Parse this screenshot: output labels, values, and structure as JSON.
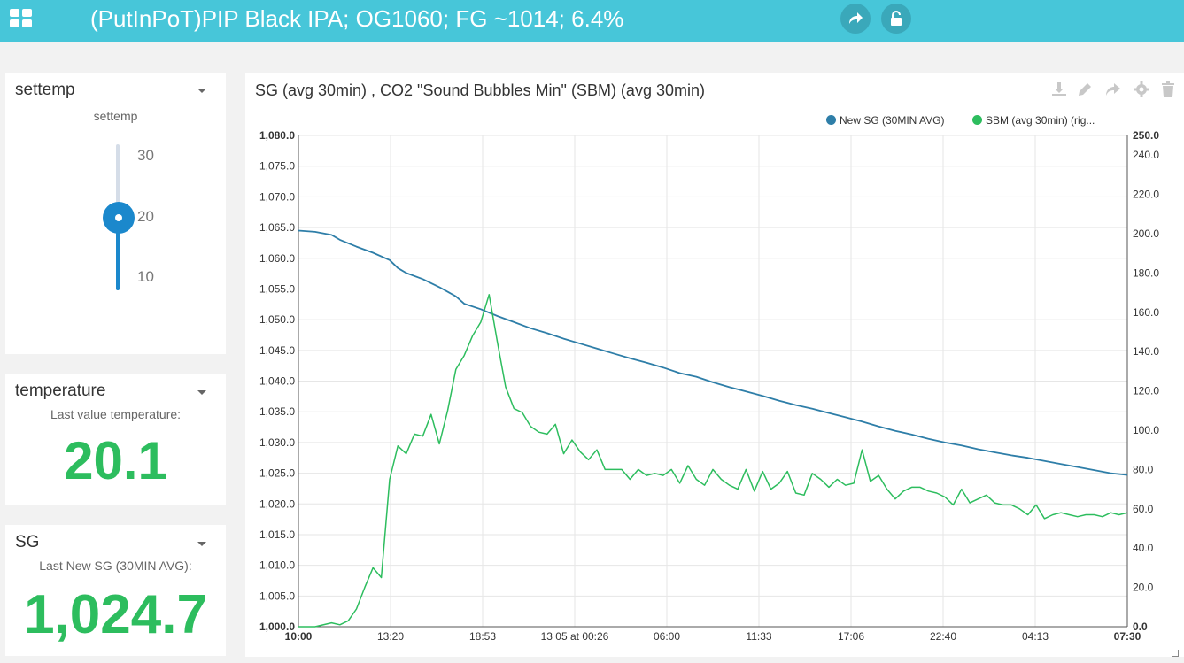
{
  "header": {
    "title": "(PutInPoT)PIP Black IPA; OG1060; FG ~1014; 6.4%",
    "icons": [
      "grid-menu-icon",
      "share-icon",
      "lock-icon"
    ],
    "colors": {
      "topbar": "#47c6d9",
      "buttons": "#3aa8ba"
    }
  },
  "settemp": {
    "title": "settemp",
    "label": "settemp",
    "value": 20,
    "min": 5,
    "max": 35,
    "ticks": [
      "30",
      "20",
      "10"
    ],
    "color": "#1b88cc"
  },
  "temperature": {
    "title": "temperature",
    "label": "Last value temperature:",
    "value": "20.1",
    "color": "#2dbd5e"
  },
  "sg": {
    "title": "SG",
    "label": "Last New SG (30MIN AVG):",
    "value": "1,024.7",
    "color": "#2dbd5e"
  },
  "chart_panel": {
    "title": "SG (avg 30min) , CO2 \"Sound Bubbles Min\" (SBM) (avg 30min)",
    "toolbar_icons": [
      "download-icon",
      "edit-icon",
      "share-icon",
      "settings-icon",
      "delete-icon"
    ]
  },
  "chart_data": {
    "type": "line",
    "title": "SG (avg 30min) , CO2 \"Sound Bubbles Min\" (SBM) (avg 30min)",
    "legend_position": "top-right",
    "grid": true,
    "x_ticks": [
      "10:00",
      "13:20",
      "18:53",
      "13 05 at 00:26",
      "06:00",
      "11:33",
      "17:06",
      "22:40",
      "04:13",
      "07:30"
    ],
    "x_range": [
      0,
      100
    ],
    "y_left": {
      "range": [
        1000,
        1080
      ],
      "ticks": [
        "1,000.0",
        "1,005.0",
        "1,010.0",
        "1,015.0",
        "1,020.0",
        "1,025.0",
        "1,030.0",
        "1,035.0",
        "1,040.0",
        "1,045.0",
        "1,050.0",
        "1,055.0",
        "1,060.0",
        "1,065.0",
        "1,070.0",
        "1,075.0",
        "1,080.0"
      ]
    },
    "y_right": {
      "range": [
        0,
        250
      ],
      "ticks": [
        "0.0",
        "20.0",
        "40.0",
        "60.0",
        "80.0",
        "100.0",
        "120.0",
        "140.0",
        "160.0",
        "180.0",
        "200.0",
        "220.0",
        "240.0",
        "250.0"
      ]
    },
    "series": [
      {
        "name": "New SG (30MIN AVG)",
        "axis": "left",
        "color": "#2e7ea8",
        "x": [
          0,
          2,
          4,
          5,
          7,
          9,
          11,
          12,
          13,
          15,
          17,
          19,
          20,
          22,
          24,
          26,
          28,
          30,
          32,
          34,
          36,
          38,
          40,
          42,
          44,
          46,
          48,
          50,
          52,
          54,
          56,
          58,
          60,
          62,
          64,
          66,
          68,
          70,
          72,
          74,
          76,
          78,
          80,
          82,
          84,
          86,
          88,
          90,
          92,
          94,
          96,
          98,
          100
        ],
        "y": [
          1064.5,
          1064.3,
          1063.8,
          1063.0,
          1061.9,
          1060.9,
          1059.7,
          1058.4,
          1057.6,
          1056.6,
          1055.3,
          1053.8,
          1052.6,
          1051.7,
          1050.6,
          1049.6,
          1048.6,
          1047.8,
          1046.9,
          1046.1,
          1045.3,
          1044.5,
          1043.7,
          1043.0,
          1042.2,
          1041.3,
          1040.7,
          1039.8,
          1039.0,
          1038.3,
          1037.6,
          1036.8,
          1036.1,
          1035.5,
          1034.8,
          1034.1,
          1033.4,
          1032.6,
          1031.9,
          1031.3,
          1030.6,
          1030.0,
          1029.5,
          1028.9,
          1028.4,
          1027.9,
          1027.5,
          1027.0,
          1026.5,
          1026.0,
          1025.5,
          1025.0,
          1024.7
        ]
      },
      {
        "name": "SBM (avg 30min) (rig...",
        "axis": "right",
        "color": "#2dbd5e",
        "x": [
          0,
          2,
          4,
          5,
          6,
          7,
          8,
          9,
          10,
          11,
          12,
          13,
          14,
          15,
          16,
          17,
          18,
          19,
          20,
          21,
          22,
          23,
          24,
          25,
          26,
          27,
          28,
          29,
          30,
          31,
          32,
          33,
          34,
          35,
          36,
          37,
          38,
          39,
          40,
          41,
          42,
          43,
          44,
          45,
          46,
          47,
          48,
          49,
          50,
          51,
          52,
          53,
          54,
          55,
          56,
          57,
          58,
          59,
          60,
          61,
          62,
          63,
          64,
          65,
          66,
          67,
          68,
          69,
          70,
          71,
          72,
          73,
          74,
          75,
          76,
          77,
          78,
          79,
          80,
          81,
          82,
          83,
          84,
          85,
          86,
          87,
          88,
          89,
          90,
          91,
          92,
          93,
          94,
          95,
          96,
          97,
          98,
          99,
          100
        ],
        "y": [
          0,
          0,
          2,
          1,
          3,
          9,
          20,
          30,
          25,
          75,
          92,
          88,
          98,
          97,
          108,
          93,
          110,
          131,
          138,
          148,
          155,
          169,
          145,
          122,
          111,
          109,
          102,
          99,
          98,
          103,
          88,
          95,
          89,
          85,
          90,
          80,
          80,
          80,
          75,
          80,
          77,
          78,
          77,
          80,
          73,
          82,
          75,
          72,
          80,
          75,
          72,
          70,
          80,
          69,
          79,
          70,
          73,
          79,
          68,
          67,
          78,
          75,
          71,
          75,
          72,
          73,
          90,
          74,
          77,
          70,
          65,
          69,
          71,
          71,
          69,
          68,
          66,
          62,
          70,
          63,
          65,
          67,
          63,
          62,
          62,
          60,
          57,
          62,
          55,
          57,
          58,
          57,
          56,
          57,
          57,
          56,
          58,
          57,
          58
        ]
      }
    ]
  }
}
